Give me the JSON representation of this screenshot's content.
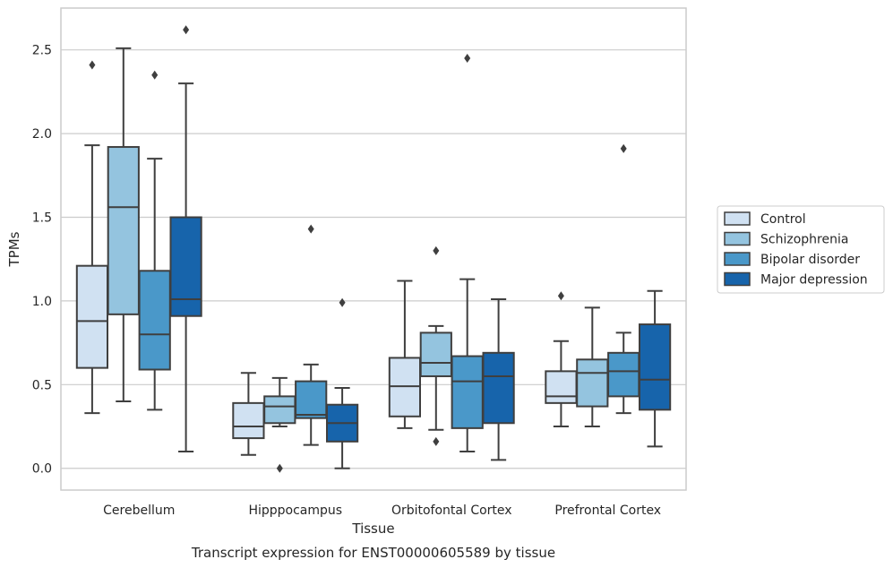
{
  "chart_data": {
    "type": "boxplot",
    "xlabel": "Tissue",
    "ylabel": "TPMs",
    "caption": "Transcript expression for ENST00000605589 by tissue",
    "ylim": [
      -0.13,
      2.75
    ],
    "yticks": [
      "0.0",
      "0.5",
      "1.0",
      "1.5",
      "2.0",
      "2.5"
    ],
    "grid": "horizontal",
    "legend_position": "right",
    "categories": [
      "Cerebellum",
      "Hipppocampus",
      "Orbitofontal Cortex",
      "Prefrontal Cortex"
    ],
    "series": [
      {
        "name": "Control",
        "color": "#d0e1f2",
        "boxes": [
          {
            "q1": 0.6,
            "median": 0.88,
            "q3": 1.21,
            "whislo": 0.33,
            "whishi": 1.93,
            "fliers": [
              2.41
            ]
          },
          {
            "q1": 0.18,
            "median": 0.25,
            "q3": 0.39,
            "whislo": 0.08,
            "whishi": 0.57,
            "fliers": []
          },
          {
            "q1": 0.31,
            "median": 0.49,
            "q3": 0.66,
            "whislo": 0.24,
            "whishi": 1.12,
            "fliers": []
          },
          {
            "q1": 0.39,
            "median": 0.43,
            "q3": 0.58,
            "whislo": 0.25,
            "whishi": 0.76,
            "fliers": [
              1.03
            ]
          }
        ]
      },
      {
        "name": "Schizophrenia",
        "color": "#94c4df",
        "boxes": [
          {
            "q1": 0.92,
            "median": 1.56,
            "q3": 1.92,
            "whislo": 0.4,
            "whishi": 2.51,
            "fliers": []
          },
          {
            "q1": 0.27,
            "median": 0.37,
            "q3": 0.43,
            "whislo": 0.25,
            "whishi": 0.54,
            "fliers": [
              0.0
            ]
          },
          {
            "q1": 0.55,
            "median": 0.63,
            "q3": 0.81,
            "whislo": 0.23,
            "whishi": 0.85,
            "fliers": [
              1.3,
              0.16
            ]
          },
          {
            "q1": 0.37,
            "median": 0.57,
            "q3": 0.65,
            "whislo": 0.25,
            "whishi": 0.96,
            "fliers": []
          }
        ]
      },
      {
        "name": "Bipolar disorder",
        "color": "#4a98c9",
        "boxes": [
          {
            "q1": 0.59,
            "median": 0.8,
            "q3": 1.18,
            "whislo": 0.35,
            "whishi": 1.85,
            "fliers": [
              2.35
            ]
          },
          {
            "q1": 0.3,
            "median": 0.32,
            "q3": 0.52,
            "whislo": 0.14,
            "whishi": 0.62,
            "fliers": [
              1.43
            ]
          },
          {
            "q1": 0.24,
            "median": 0.52,
            "q3": 0.67,
            "whislo": 0.1,
            "whishi": 1.13,
            "fliers": [
              2.45
            ]
          },
          {
            "q1": 0.43,
            "median": 0.58,
            "q3": 0.69,
            "whislo": 0.33,
            "whishi": 0.81,
            "fliers": [
              1.91
            ]
          }
        ]
      },
      {
        "name": "Major depression",
        "color": "#1764ab",
        "boxes": [
          {
            "q1": 0.91,
            "median": 1.01,
            "q3": 1.5,
            "whislo": 0.1,
            "whishi": 2.3,
            "fliers": [
              2.62
            ]
          },
          {
            "q1": 0.16,
            "median": 0.27,
            "q3": 0.38,
            "whislo": 0.0,
            "whishi": 0.48,
            "fliers": [
              0.99
            ]
          },
          {
            "q1": 0.27,
            "median": 0.55,
            "q3": 0.69,
            "whislo": 0.05,
            "whishi": 1.01,
            "fliers": []
          },
          {
            "q1": 0.35,
            "median": 0.53,
            "q3": 0.86,
            "whislo": 0.13,
            "whishi": 1.06,
            "fliers": []
          }
        ]
      }
    ]
  }
}
